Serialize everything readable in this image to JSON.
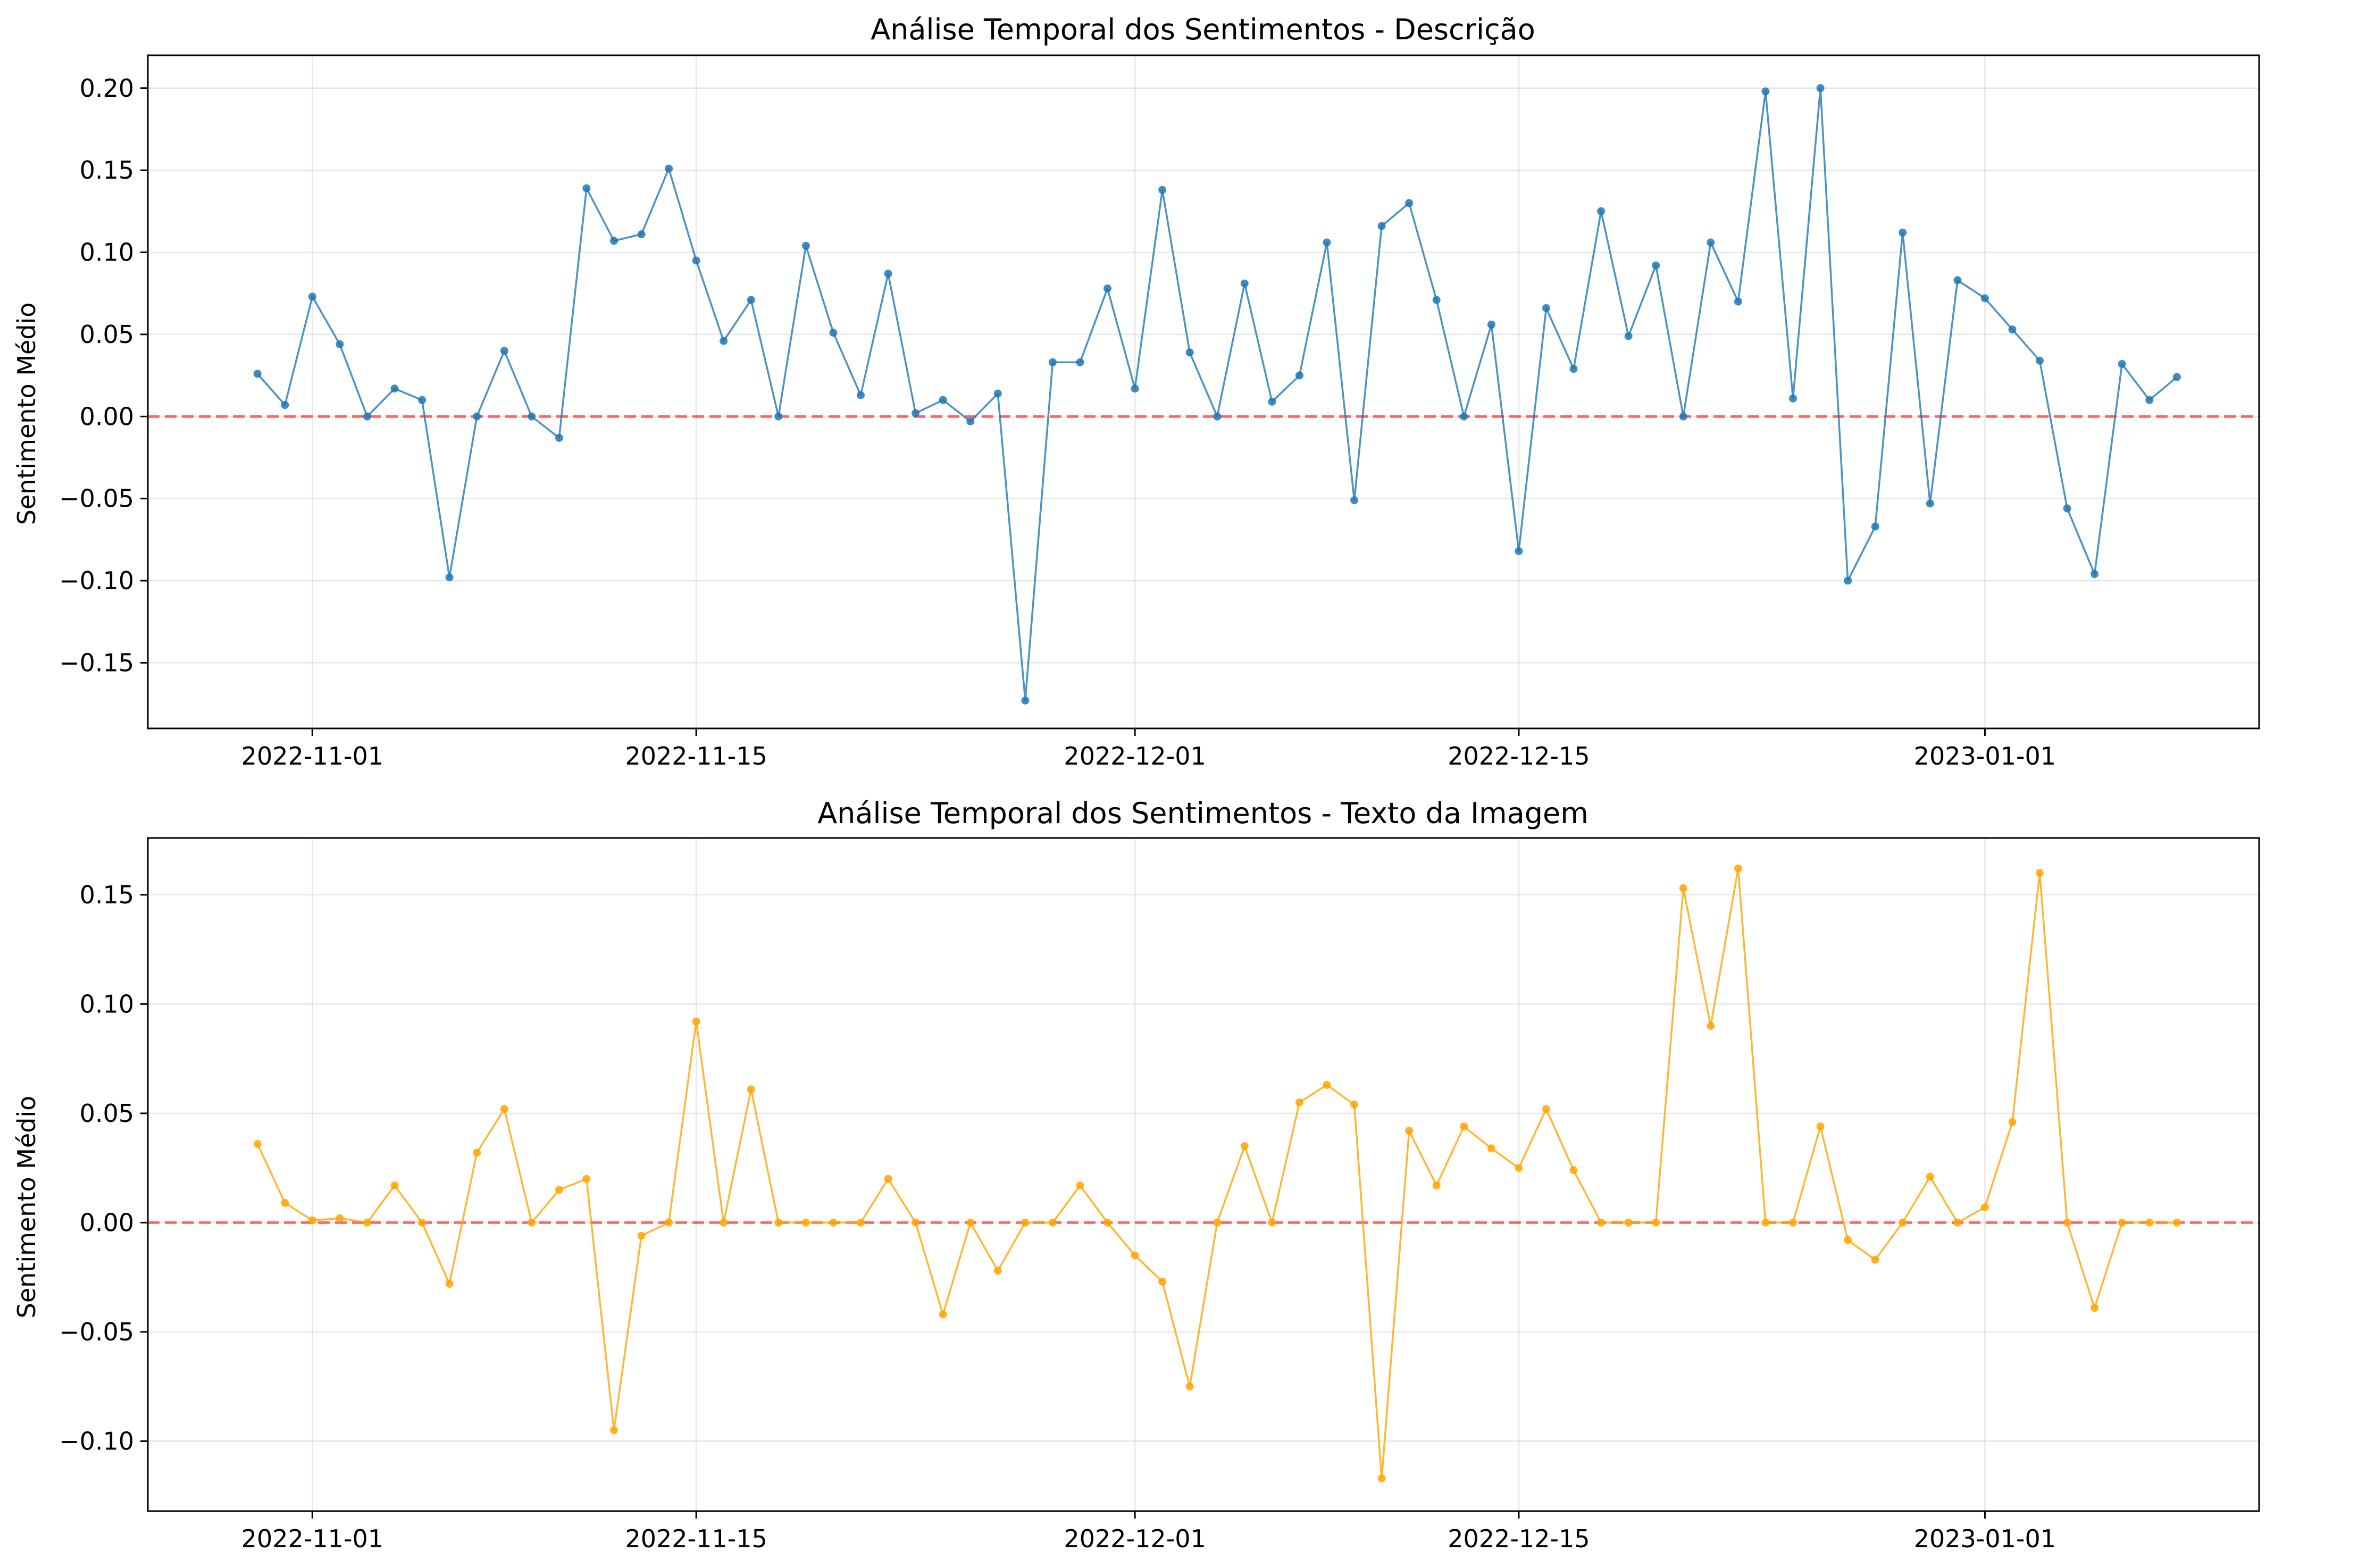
{
  "chart_data": [
    {
      "type": "line",
      "title": "Análise Temporal dos Sentimentos - Descrição",
      "xlabel": "",
      "ylabel": "Sentimento Médio",
      "color": "#1f77b4",
      "reference_line": {
        "y": 0,
        "color": "#ff0000",
        "style": "dashed"
      },
      "grid": true,
      "x_start": "2022-10-30",
      "x_step_days": 1,
      "xlim": [
        "2022-10-26",
        "2023-01-11"
      ],
      "ylim": [
        -0.19,
        0.22
      ],
      "x_ticks": [
        "2022-11-01",
        "2022-11-15",
        "2022-12-01",
        "2022-12-15",
        "2023-01-01"
      ],
      "y_ticks": [
        -0.15,
        -0.1,
        -0.05,
        0.0,
        0.05,
        0.1,
        0.15,
        0.2
      ],
      "y_tick_labels": [
        "−0.15",
        "−0.10",
        "−0.05",
        "0.00",
        "0.05",
        "0.10",
        "0.15",
        "0.20"
      ],
      "values": [
        0.026,
        0.007,
        0.073,
        0.044,
        0.0,
        0.017,
        0.01,
        -0.098,
        0.0,
        0.04,
        0.0,
        -0.013,
        0.139,
        0.107,
        0.111,
        0.151,
        0.095,
        0.046,
        0.071,
        0.0,
        0.104,
        0.051,
        0.013,
        0.087,
        0.002,
        0.01,
        -0.003,
        0.014,
        -0.173,
        0.033,
        0.033,
        0.078,
        0.017,
        0.138,
        0.039,
        0.0,
        0.081,
        0.009,
        0.025,
        0.106,
        -0.051,
        0.116,
        0.13,
        0.071,
        0.0,
        0.056,
        -0.082,
        0.066,
        0.029,
        0.125,
        0.049,
        0.092,
        0.0,
        0.106,
        0.07,
        0.198,
        0.011,
        0.2,
        -0.1,
        -0.067,
        0.112,
        -0.053,
        0.083,
        0.072,
        0.053,
        0.034,
        -0.056,
        -0.096,
        0.032,
        0.01,
        0.024
      ]
    },
    {
      "type": "line",
      "title": "Análise Temporal dos Sentimentos - Texto da Imagem",
      "xlabel": "",
      "ylabel": "Sentimento Médio",
      "color": "#ffa500",
      "reference_line": {
        "y": 0,
        "color": "#ff0000",
        "style": "dashed"
      },
      "grid": true,
      "x_start": "2022-10-30",
      "x_step_days": 1,
      "xlim": [
        "2022-10-26",
        "2023-01-11"
      ],
      "ylim": [
        -0.132,
        0.176
      ],
      "x_ticks": [
        "2022-11-01",
        "2022-11-15",
        "2022-12-01",
        "2022-12-15",
        "2023-01-01"
      ],
      "y_ticks": [
        -0.1,
        -0.05,
        0.0,
        0.05,
        0.1,
        0.15
      ],
      "y_tick_labels": [
        "−0.10",
        "−0.05",
        "0.00",
        "0.05",
        "0.10",
        "0.15"
      ],
      "values": [
        0.036,
        0.009,
        0.001,
        0.002,
        0.0,
        0.017,
        0.0,
        -0.028,
        0.032,
        0.052,
        0.0,
        0.015,
        0.02,
        -0.095,
        -0.006,
        0.0,
        0.092,
        0.0,
        0.061,
        0.0,
        0.0,
        0.0,
        0.0,
        0.02,
        0.0,
        -0.042,
        0.0,
        -0.022,
        0.0,
        0.0,
        0.017,
        0.0,
        -0.015,
        -0.027,
        -0.075,
        0.0,
        0.035,
        0.0,
        0.055,
        0.063,
        0.054,
        -0.117,
        0.042,
        0.017,
        0.044,
        0.034,
        0.025,
        0.052,
        0.024,
        0.0,
        0.0,
        0.0,
        0.153,
        0.09,
        0.162,
        0.0,
        0.0,
        0.044,
        -0.008,
        -0.017,
        0.0,
        0.021,
        0.0,
        0.007,
        0.046,
        0.16,
        0.0,
        -0.039,
        0.0,
        0.0,
        0.0
      ]
    }
  ]
}
